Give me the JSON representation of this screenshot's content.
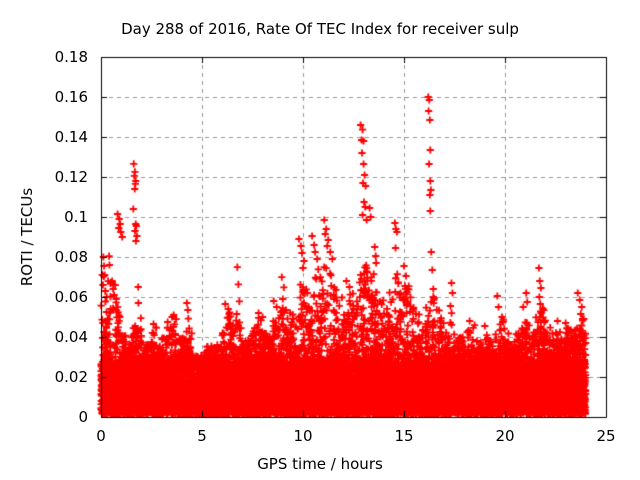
{
  "chart_data": {
    "type": "scatter",
    "title": "Day 288 of 2016, Rate Of TEC Index for receiver sulp",
    "xlabel": "GPS time / hours",
    "ylabel": "ROTI / TECUs",
    "xlim": [
      0,
      25
    ],
    "ylim": [
      0,
      0.18
    ],
    "xticks": [
      0,
      5,
      10,
      15,
      20,
      25
    ],
    "xtick_labels": [
      "0",
      "5",
      "10",
      "15",
      "20",
      "25"
    ],
    "yticks": [
      0,
      0.02,
      0.04,
      0.06,
      0.08,
      0.1,
      0.12,
      0.14,
      0.16,
      0.18
    ],
    "ytick_labels": [
      "0",
      "0.02",
      "0.04",
      "0.06",
      "0.08",
      "0.1",
      "0.12",
      "0.14",
      "0.16",
      "0.18"
    ],
    "grid": true,
    "legend": "none",
    "marker": "+",
    "marker_color": "#ff0000",
    "grid_color": "#999999",
    "border_color": "#000000",
    "background_color": "#ffffff",
    "series": [
      {
        "data_hours_range": [
          0,
          24
        ],
        "dense_band": {
          "min": 0.0015,
          "solid_top": 0.026
        },
        "envelope_bin_hours": 0.25,
        "envelope_top": [
          0.072,
          0.068,
          0.064,
          0.055,
          0.042,
          0.038,
          0.047,
          0.05,
          0.04,
          0.042,
          0.046,
          0.036,
          0.04,
          0.0455,
          0.051,
          0.04,
          0.044,
          0.0525,
          0.036,
          0.031,
          0.033,
          0.036,
          0.035,
          0.038,
          0.048,
          0.054,
          0.05,
          0.048,
          0.04,
          0.042,
          0.046,
          0.05,
          0.042,
          0.04,
          0.048,
          0.055,
          0.058,
          0.052,
          0.058,
          0.068,
          0.064,
          0.062,
          0.07,
          0.075,
          0.08,
          0.072,
          0.065,
          0.06,
          0.058,
          0.062,
          0.06,
          0.072,
          0.078,
          0.07,
          0.064,
          0.068,
          0.06,
          0.065,
          0.072,
          0.062,
          0.068,
          0.06,
          0.052,
          0.048,
          0.055,
          0.065,
          0.058,
          0.05,
          0.045,
          0.052,
          0.042,
          0.04,
          0.044,
          0.046,
          0.038,
          0.04,
          0.042,
          0.038,
          0.046,
          0.05,
          0.042,
          0.038,
          0.042,
          0.045,
          0.048,
          0.044,
          0.05,
          0.055,
          0.045,
          0.042,
          0.044,
          0.042,
          0.045,
          0.044,
          0.05,
          0.052
        ],
        "outliers": [
          [
            0.12,
            0.08
          ],
          [
            0.15,
            0.0755
          ],
          [
            0.18,
            0.071
          ],
          [
            0.1,
            0.066
          ],
          [
            0.22,
            0.063
          ],
          [
            0.28,
            0.06
          ],
          [
            0.4,
            0.0804
          ],
          [
            0.42,
            0.076
          ],
          [
            0.55,
            0.068
          ],
          [
            0.6,
            0.064
          ],
          [
            0.65,
            0.061
          ],
          [
            0.7,
            0.066
          ],
          [
            0.75,
            0.059
          ],
          [
            0.82,
            0.1015
          ],
          [
            0.9,
            0.099
          ],
          [
            0.95,
            0.0965
          ],
          [
            0.88,
            0.0945
          ],
          [
            0.98,
            0.0925
          ],
          [
            1.05,
            0.09
          ],
          [
            1.62,
            0.1266
          ],
          [
            1.68,
            0.1226
          ],
          [
            1.65,
            0.1206
          ],
          [
            1.72,
            0.118
          ],
          [
            1.7,
            0.1166
          ],
          [
            1.67,
            0.114
          ],
          [
            1.6,
            0.104
          ],
          [
            1.72,
            0.0965
          ],
          [
            1.75,
            0.0955
          ],
          [
            1.68,
            0.093
          ],
          [
            1.78,
            0.0905
          ],
          [
            1.73,
            0.088
          ],
          [
            1.84,
            0.065
          ],
          [
            1.85,
            0.057
          ],
          [
            2.6,
            0.0465
          ],
          [
            3.3,
            0.0475
          ],
          [
            3.6,
            0.051
          ],
          [
            4.25,
            0.057
          ],
          [
            4.3,
            0.0535
          ],
          [
            6.15,
            0.0565
          ],
          [
            6.3,
            0.054
          ],
          [
            6.75,
            0.0749
          ],
          [
            6.8,
            0.0663
          ],
          [
            6.85,
            0.0578
          ],
          [
            6.72,
            0.0515
          ],
          [
            7.8,
            0.052
          ],
          [
            8.0,
            0.05
          ],
          [
            8.55,
            0.058
          ],
          [
            8.7,
            0.055
          ],
          [
            8.95,
            0.0699
          ],
          [
            9.05,
            0.0648
          ],
          [
            9.0,
            0.059
          ],
          [
            9.15,
            0.0535
          ],
          [
            9.8,
            0.089
          ],
          [
            9.9,
            0.0855
          ],
          [
            9.95,
            0.082
          ],
          [
            10.05,
            0.078
          ],
          [
            10.0,
            0.0745
          ],
          [
            10.45,
            0.0905
          ],
          [
            10.55,
            0.086
          ],
          [
            10.6,
            0.0825
          ],
          [
            10.7,
            0.079
          ],
          [
            11.05,
            0.0985
          ],
          [
            11.15,
            0.094
          ],
          [
            11.1,
            0.0915
          ],
          [
            11.25,
            0.0885
          ],
          [
            11.2,
            0.0855
          ],
          [
            11.35,
            0.0825
          ],
          [
            11.45,
            0.079
          ],
          [
            12.15,
            0.068
          ],
          [
            12.3,
            0.065
          ],
          [
            12.85,
            0.146
          ],
          [
            12.95,
            0.1437
          ],
          [
            12.9,
            0.1385
          ],
          [
            13.0,
            0.138
          ],
          [
            12.92,
            0.132
          ],
          [
            13.0,
            0.1265
          ],
          [
            13.05,
            0.121
          ],
          [
            12.97,
            0.117
          ],
          [
            13.1,
            0.1155
          ],
          [
            13.02,
            0.1075
          ],
          [
            13.08,
            0.105
          ],
          [
            13.3,
            0.1045
          ],
          [
            13.35,
            0.1
          ],
          [
            12.95,
            0.101
          ],
          [
            13.15,
            0.0985
          ],
          [
            13.55,
            0.085
          ],
          [
            13.6,
            0.0805
          ],
          [
            13.62,
            0.077
          ],
          [
            13.5,
            0.0714
          ],
          [
            14.55,
            0.097
          ],
          [
            14.6,
            0.094
          ],
          [
            14.65,
            0.0925
          ],
          [
            14.58,
            0.0845
          ],
          [
            15.0,
            0.0755
          ],
          [
            15.1,
            0.0705
          ],
          [
            15.05,
            0.0655
          ],
          [
            15.15,
            0.0625
          ],
          [
            16.2,
            0.16
          ],
          [
            16.25,
            0.1585
          ],
          [
            16.22,
            0.153
          ],
          [
            16.28,
            0.1485
          ],
          [
            16.3,
            0.1335
          ],
          [
            16.24,
            0.1265
          ],
          [
            16.3,
            0.118
          ],
          [
            16.33,
            0.1135
          ],
          [
            16.28,
            0.111
          ],
          [
            16.3,
            0.103
          ],
          [
            16.35,
            0.0825
          ],
          [
            16.4,
            0.0735
          ],
          [
            16.45,
            0.064
          ],
          [
            17.35,
            0.067
          ],
          [
            17.4,
            0.062
          ],
          [
            17.3,
            0.0555
          ],
          [
            18.25,
            0.048
          ],
          [
            19.0,
            0.0455
          ],
          [
            19.62,
            0.0605
          ],
          [
            19.68,
            0.055
          ],
          [
            19.85,
            0.05
          ],
          [
            20.9,
            0.055
          ],
          [
            21.05,
            0.062
          ],
          [
            21.1,
            0.0575
          ],
          [
            21.68,
            0.0745
          ],
          [
            21.72,
            0.068
          ],
          [
            21.78,
            0.0645
          ],
          [
            21.7,
            0.06
          ],
          [
            21.75,
            0.0565
          ],
          [
            22.6,
            0.048
          ],
          [
            23.0,
            0.047
          ],
          [
            23.6,
            0.062
          ],
          [
            23.7,
            0.0585
          ],
          [
            23.8,
            0.055
          ],
          [
            23.75,
            0.0515
          ],
          [
            23.9,
            0.049
          ]
        ]
      }
    ]
  }
}
